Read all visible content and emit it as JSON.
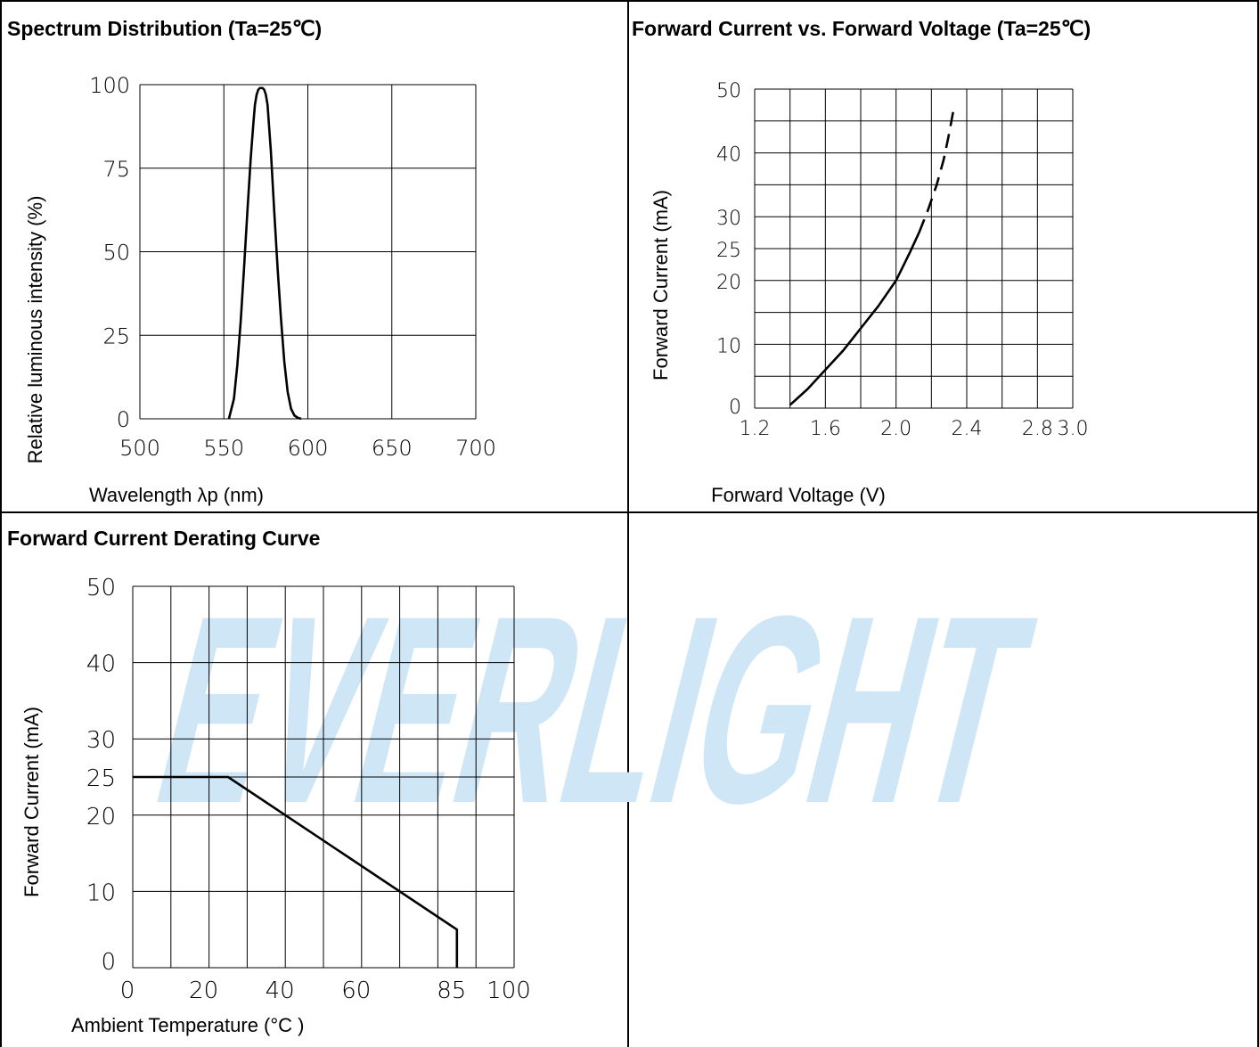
{
  "panels": {
    "spectrum_title": "Spectrum Distribution (Ta=25℃)",
    "iv_title": "Forward Current vs. Forward Voltage (Ta=25℃)",
    "derating_title": "Forward Current Derating Curve"
  },
  "watermark": {
    "text": "EVERLIGHT",
    "color": "#cfe6f6"
  },
  "colors": {
    "line": "#000000",
    "grid": "#000000"
  },
  "chart_data": [
    {
      "type": "line",
      "title": "Spectrum Distribution (Ta=25℃)",
      "xlabel": "Wavelength λp (nm)",
      "ylabel": "Relative luminous intensity (%)",
      "xlim": [
        500,
        700
      ],
      "ylim": [
        0,
        100
      ],
      "xticks": [
        "500",
        "550",
        "600",
        "650",
        "700"
      ],
      "yticks": [
        "0",
        "25",
        "50",
        "75",
        "100"
      ],
      "grid": true,
      "series": [
        {
          "x": [
            553,
            556,
            558,
            560,
            562,
            564,
            566,
            567.5,
            568.5,
            569.5,
            570.5,
            571.5,
            572,
            573,
            574,
            575,
            576,
            578,
            580,
            582,
            584,
            586,
            588,
            590,
            592,
            594,
            596
          ],
          "y": [
            0,
            6,
            16,
            29,
            45,
            62,
            78,
            88,
            94,
            97,
            98.5,
            99,
            99,
            99,
            98.5,
            97,
            94,
            80,
            62,
            45,
            30,
            17,
            8,
            3,
            1,
            0.3,
            0
          ]
        }
      ]
    },
    {
      "type": "line",
      "title": "Forward Current vs. Forward Voltage (Ta=25℃)",
      "xlabel": "Forward Voltage (V)",
      "ylabel": "Forward Current (mA)",
      "xlim": [
        1.2,
        3.0
      ],
      "ylim": [
        0,
        50
      ],
      "xticks": [
        "1.2",
        "1.6",
        "2.0",
        "2.4",
        "2.8",
        "3.0"
      ],
      "xtick_values": [
        1.2,
        1.6,
        2.0,
        2.4,
        2.8,
        3.0
      ],
      "yticks": [
        "0",
        "10",
        "20",
        "25",
        "30",
        "40",
        "50"
      ],
      "ytick_values": [
        0,
        10,
        20,
        25,
        30,
        40,
        50
      ],
      "grid": true,
      "series": [
        {
          "style": "solid",
          "x": [
            1.4,
            1.5,
            1.6,
            1.7,
            1.8,
            1.9,
            2.0,
            2.08,
            2.13
          ],
          "y": [
            0.5,
            3,
            6,
            9,
            12.5,
            16,
            20,
            24.5,
            27.5
          ]
        },
        {
          "style": "dashed",
          "x": [
            2.13,
            2.18,
            2.23,
            2.27,
            2.3,
            2.33
          ],
          "y": [
            27.5,
            31,
            35,
            39,
            43,
            47.5
          ]
        }
      ]
    },
    {
      "type": "line",
      "title": "Forward Current Derating Curve",
      "xlabel": "Ambient Temperature (°C )",
      "ylabel": "Forward Current (mA)",
      "xlim": [
        0,
        100
      ],
      "ylim": [
        0,
        50
      ],
      "xticks": [
        "0",
        "20",
        "40",
        "60",
        "85",
        "100"
      ],
      "xtick_values": [
        0,
        20,
        40,
        60,
        85,
        100
      ],
      "yticks": [
        "0",
        "10",
        "20",
        "25",
        "30",
        "40",
        "50"
      ],
      "ytick_values": [
        0,
        10,
        20,
        25,
        30,
        40,
        50
      ],
      "grid": true,
      "series": [
        {
          "x": [
            0,
            25,
            85,
            85
          ],
          "y": [
            25,
            25,
            5,
            0
          ]
        }
      ]
    }
  ]
}
